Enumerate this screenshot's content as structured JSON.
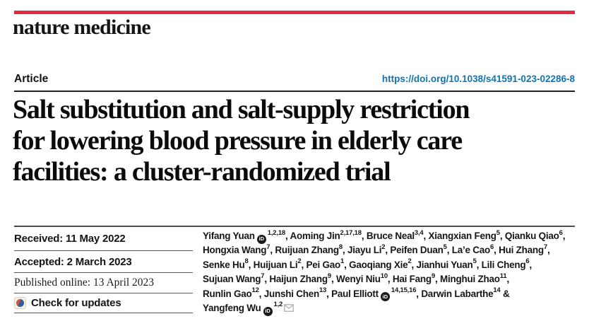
{
  "page": {
    "accent_red": "#e42940",
    "doi_color": "#1173b4"
  },
  "masthead": {
    "journal": "nature medicine"
  },
  "header": {
    "article_label": "Article",
    "doi": "https://doi.org/10.1038/s41591-023-02286-8"
  },
  "title_lines": [
    "Salt substitution and salt-supply restriction",
    "for lowering blood pressure in elderly care",
    "facilities: a cluster-randomized trial"
  ],
  "dates": {
    "received": "Received: 11 May 2022",
    "accepted": "Accepted: 2 March 2023",
    "published": "Published online: 13 April 2023",
    "check_updates": "Check for updates"
  },
  "icons": {
    "orcid_label": "iD",
    "crossmark": "crossmark-badge",
    "email": "envelope"
  },
  "authors": {
    "lines": [
      [
        {
          "name": "Yifang Yuan",
          "orcid": true,
          "sup": "1,2,18",
          "sep": ", "
        },
        {
          "name": "Aoming Jin",
          "sup": "2,17,18",
          "sep": ", "
        },
        {
          "name": "Bruce Neal",
          "sup": "3,4",
          "sep": ", "
        },
        {
          "name": "Xiangxian Feng",
          "sup": "5",
          "sep": ", "
        },
        {
          "name": "Qianku Qiao",
          "sup": "6",
          "sep": ","
        }
      ],
      [
        {
          "name": "Hongxia Wang",
          "sup": "7",
          "sep": ", "
        },
        {
          "name": "Ruijuan Zhang",
          "sup": "8",
          "sep": ", "
        },
        {
          "name": "Jiayu Li",
          "sup": "2",
          "sep": ", "
        },
        {
          "name": "Peifen Duan",
          "sup": "5",
          "sep": ", "
        },
        {
          "name": "La’e Cao",
          "sup": "6",
          "sep": ", "
        },
        {
          "name": "Hui Zhang",
          "sup": "7",
          "sep": ","
        }
      ],
      [
        {
          "name": "Senke Hu",
          "sup": "8",
          "sep": ", "
        },
        {
          "name": "Huijuan Li",
          "sup": "2",
          "sep": ", "
        },
        {
          "name": "Pei Gao",
          "sup": "1",
          "sep": ", "
        },
        {
          "name": "Gaoqiang Xie",
          "sup": "2",
          "sep": ", "
        },
        {
          "name": "Jianhui Yuan",
          "sup": "5",
          "sep": ", "
        },
        {
          "name": "Lili Cheng",
          "sup": "6",
          "sep": ","
        }
      ],
      [
        {
          "name": "Sujuan Wang",
          "sup": "7",
          "sep": ", "
        },
        {
          "name": "Haijun Zhang",
          "sup": "9",
          "sep": ", "
        },
        {
          "name": "Wenyi Niu",
          "sup": "10",
          "sep": ", "
        },
        {
          "name": "Hai Fang",
          "sup": "9",
          "sep": ", "
        },
        {
          "name": "Minghui Zhao",
          "sup": "11",
          "sep": ","
        }
      ],
      [
        {
          "name": "Runlin Gao",
          "sup": "12",
          "sep": ", "
        },
        {
          "name": "Junshi Chen",
          "sup": "13",
          "sep": ", "
        },
        {
          "name": "Paul Elliott",
          "orcid": true,
          "sup": "14,15,16",
          "sep": ", "
        },
        {
          "name": "Darwin Labarthe",
          "sup": "14",
          "sep": " &"
        }
      ],
      [
        {
          "name": "Yangfeng Wu",
          "orcid": true,
          "sup": "1,2",
          "email": true,
          "sep": ""
        }
      ]
    ]
  }
}
